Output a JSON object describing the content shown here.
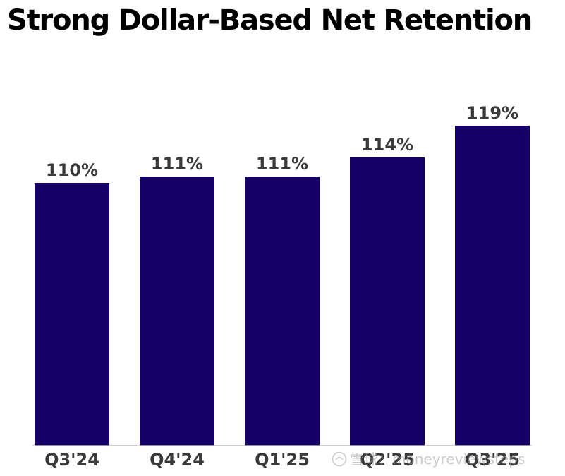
{
  "title": "Strong Dollar-Based Net Retention",
  "watermark": "雪球：moneyreviewsteps",
  "colors": {
    "bar": "#140066",
    "axis": "#bdbdbd",
    "label": "#3a3a3a"
  },
  "chart_data": {
    "type": "bar",
    "title": "Strong Dollar-Based Net Retention",
    "xlabel": "",
    "ylabel": "",
    "categories": [
      "Q3'24",
      "Q4'24",
      "Q1'25",
      "Q2'25",
      "Q3'25"
    ],
    "values": [
      110,
      111,
      111,
      114,
      119
    ],
    "value_labels": [
      "110%",
      "111%",
      "111%",
      "114%",
      "119%"
    ],
    "unit": "%",
    "grid": false,
    "legend": "none"
  }
}
